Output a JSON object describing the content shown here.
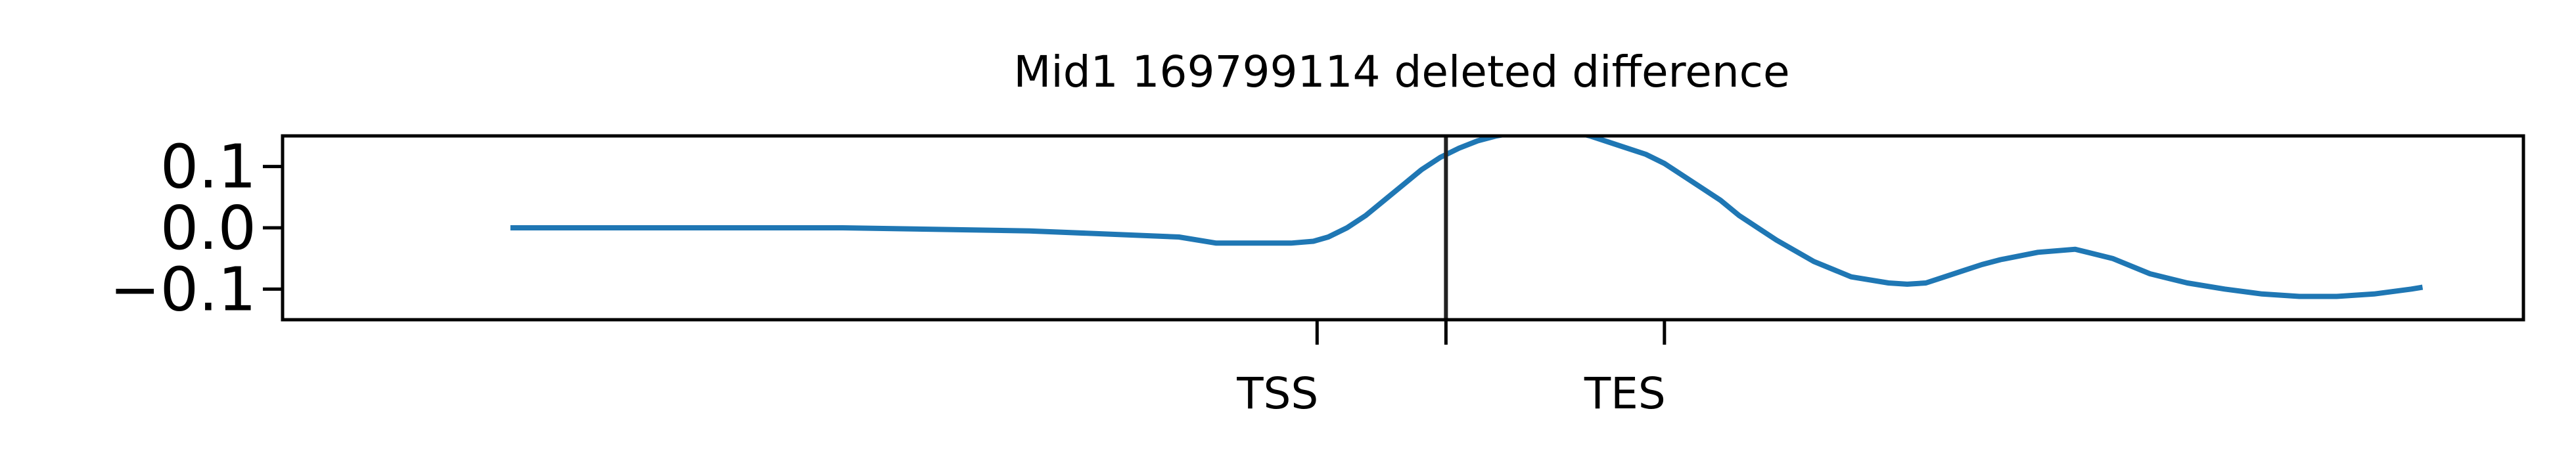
{
  "chart_data": {
    "type": "line",
    "title": "Mid1 169799114 deleted difference",
    "xlabel": "",
    "ylabel": "",
    "ylim": [
      -0.15,
      0.15
    ],
    "xlim": [
      -1000,
      11000
    ],
    "grid": false,
    "legend": "none",
    "yticks": [
      {
        "value": 0.1,
        "label": "0.1"
      },
      {
        "value": 0.0,
        "label": "0.0"
      },
      {
        "value": -0.1,
        "label": "−0.1"
      }
    ],
    "xticks": [
      {
        "value": 4540,
        "label": "TSS"
      },
      {
        "value": 5230,
        "label": ""
      },
      {
        "value": 6400,
        "label": "TES"
      }
    ],
    "vline": {
      "x": 5230,
      "color": "#222222"
    },
    "series": [
      {
        "color": "#1f77b4",
        "x": [
          220,
          1000,
          2000,
          3000,
          3800,
          4000,
          4200,
          4400,
          4520,
          4600,
          4700,
          4800,
          4900,
          5000,
          5100,
          5200,
          5300,
          5400,
          5500,
          5600,
          5700,
          5800,
          5900,
          6000,
          6100,
          6200,
          6300,
          6400,
          6500,
          6600,
          6700,
          6800,
          7000,
          7200,
          7400,
          7600,
          7700,
          7800,
          7900,
          8000,
          8100,
          8200,
          8400,
          8600,
          8800,
          9000,
          9200,
          9400,
          9600,
          9800,
          10000,
          10200,
          10400,
          10460
        ],
        "y": [
          0.0,
          0.0,
          0.0,
          -0.005,
          -0.015,
          -0.025,
          -0.025,
          -0.025,
          -0.022,
          -0.015,
          0.0,
          0.02,
          0.045,
          0.07,
          0.095,
          0.115,
          0.13,
          0.142,
          0.15,
          0.155,
          0.158,
          0.16,
          0.158,
          0.15,
          0.14,
          0.13,
          0.12,
          0.105,
          0.085,
          0.065,
          0.045,
          0.02,
          -0.02,
          -0.055,
          -0.08,
          -0.09,
          -0.092,
          -0.09,
          -0.08,
          -0.07,
          -0.06,
          -0.052,
          -0.04,
          -0.035,
          -0.05,
          -0.075,
          -0.09,
          -0.1,
          -0.108,
          -0.112,
          -0.112,
          -0.108,
          -0.1,
          -0.097
        ]
      }
    ]
  }
}
